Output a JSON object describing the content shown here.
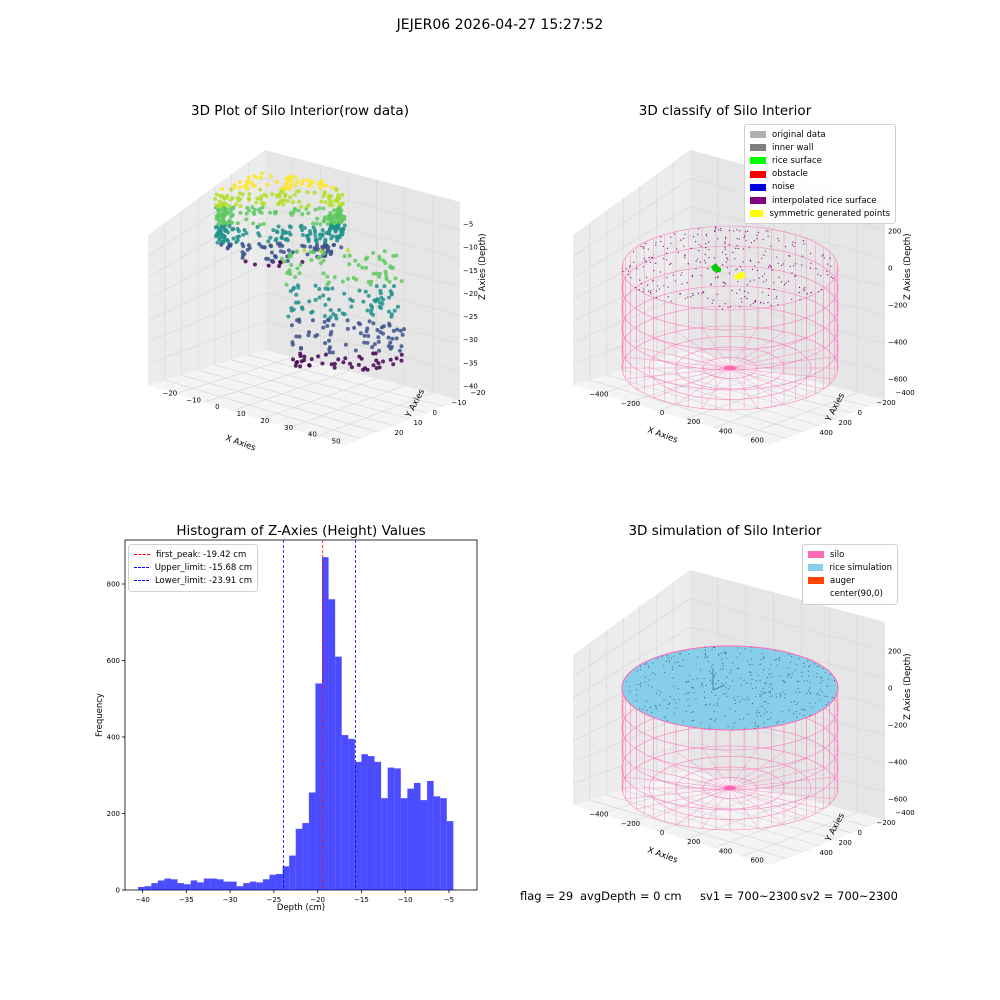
{
  "suptitle": "JEJER06 2026-04-27 15:27:52",
  "panels": {
    "raw": {
      "title": "3D Plot of Silo Interior(row data)",
      "xlabel": "X Axies",
      "ylabel": "Y Axies",
      "zlabel": "Z Axies (Depth)",
      "xticks": [
        "−20",
        "−10",
        "0",
        "10",
        "20",
        "30",
        "40",
        "50"
      ],
      "yticks": [
        "−20",
        "−10",
        "0",
        "10",
        "20"
      ],
      "zticks": [
        "−5",
        "−10",
        "−15",
        "−20",
        "−25",
        "−30",
        "−35",
        "−40"
      ]
    },
    "classify": {
      "title": "3D classify of Silo Interior",
      "xlabel": "X Axies",
      "ylabel": "Y Axies",
      "zlabel": "Z Axies (Depth)",
      "xticks": [
        "−400",
        "−200",
        "0",
        "200",
        "400",
        "600"
      ],
      "yticks": [
        "−400",
        "−200",
        "0",
        "200",
        "400"
      ],
      "zticks": [
        "200",
        "0",
        "−200",
        "−400",
        "−600"
      ],
      "legend": [
        {
          "label": "original data",
          "color": "#b0b0b0"
        },
        {
          "label": "inner wall",
          "color": "#808080"
        },
        {
          "label": "rice surface",
          "color": "#00ff00"
        },
        {
          "label": "obstacle",
          "color": "#ff0000"
        },
        {
          "label": "noise",
          "color": "#0000dd"
        },
        {
          "label": "interpolated rice surface",
          "color": "#800080"
        },
        {
          "label": "symmetric generated points",
          "color": "#ffff00"
        }
      ]
    },
    "simulation": {
      "title": "3D simulation of Silo Interior",
      "xlabel": "X Axies",
      "ylabel": "Y Axies",
      "zlabel": "Z Axies (Depth)",
      "xticks": [
        "−400",
        "−200",
        "0",
        "200",
        "400",
        "600"
      ],
      "yticks": [
        "−400",
        "−200",
        "0",
        "200",
        "400"
      ],
      "zticks": [
        "200",
        "0",
        "−200",
        "−400",
        "−600"
      ],
      "legend": [
        {
          "label": "silo",
          "color": "#ff69b4"
        },
        {
          "label": "rice simulation",
          "color": "#87ceeb"
        },
        {
          "label": "auger",
          "color": "#ff4500"
        },
        {
          "label": "center(90,0)",
          "color": ""
        }
      ]
    }
  },
  "status": {
    "flag": "flag = 29",
    "avg": "avgDepth = 0 cm",
    "sv1": "sv1 = 700~2300",
    "sv2": "sv2 = 700~2300"
  },
  "chart_data": [
    {
      "type": "scatter",
      "title": "3D Plot of Silo Interior(row data)",
      "xlabel": "X Axies",
      "ylabel": "Y Axies",
      "zlabel": "Z Axies (Depth)",
      "xlim": [
        -25,
        55
      ],
      "ylim": [
        -25,
        22
      ],
      "zlim": [
        -42,
        -3
      ]
    },
    {
      "type": "scatter",
      "title": "3D classify of Silo Interior",
      "xlim": [
        -500,
        650
      ],
      "ylim": [
        -500,
        500
      ],
      "zlim": [
        -700,
        250
      ]
    },
    {
      "type": "bar",
      "title": "Histogram of Z-Axies (Height) Values",
      "xlabel": "Depth (cm)",
      "ylabel": "Frequency",
      "xlim": [
        -42,
        -1.8
      ],
      "ylim": [
        0,
        915
      ],
      "xticks": [
        -40,
        -35,
        -30,
        -25,
        -20,
        -15,
        -10,
        -5
      ],
      "yticks": [
        0,
        200,
        400,
        600,
        800
      ],
      "bin_width": 0.75,
      "bin_start": -40.5,
      "values": [
        8,
        10,
        18,
        25,
        30,
        28,
        18,
        15,
        25,
        20,
        30,
        30,
        28,
        22,
        22,
        10,
        18,
        22,
        20,
        28,
        40,
        42,
        62,
        90,
        160,
        175,
        255,
        540,
        870,
        760,
        610,
        405,
        395,
        335,
        355,
        350,
        335,
        240,
        320,
        318,
        240,
        265,
        280,
        235,
        285,
        245,
        240,
        180
      ],
      "color": "#0000ff",
      "vlines": [
        {
          "name": "first_peak: -19.42 cm",
          "x": -19.42,
          "color": "#ff0000"
        },
        {
          "name": "Upper_limit: -15.68 cm",
          "x": -15.68,
          "color": "#0000ff"
        },
        {
          "name": "Lower_limit: -23.91 cm",
          "x": -23.91,
          "color": "#0000ff"
        }
      ]
    },
    {
      "type": "scatter",
      "title": "3D simulation of Silo Interior",
      "xlim": [
        -500,
        650
      ],
      "ylim": [
        -500,
        500
      ],
      "zlim": [
        -700,
        250
      ]
    }
  ]
}
